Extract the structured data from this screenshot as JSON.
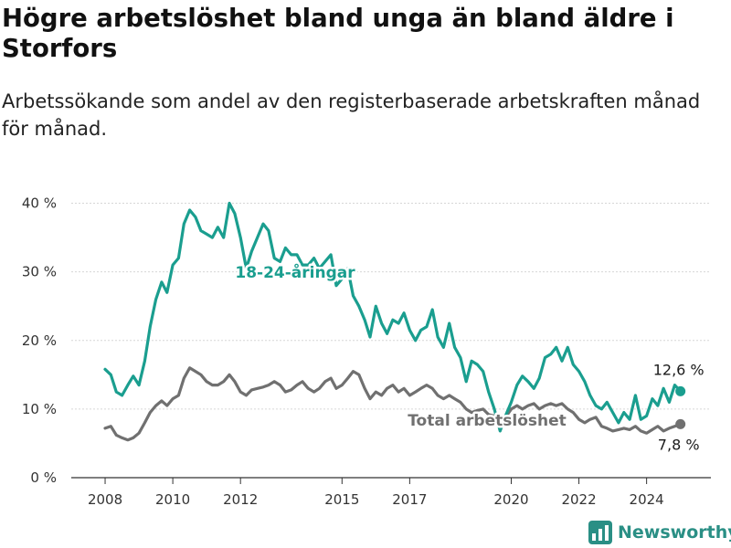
{
  "title": "Högre arbetslöshet bland unga än bland äldre i Storfors",
  "subtitle": "Arbetssökande som andel av den registerbaserade arbetskraften månad för månad.",
  "brand": {
    "name": "Newsworthy"
  },
  "colors": {
    "youth": "#1a9e8f",
    "total": "#707070",
    "grid": "#d6d6d6",
    "axis": "#333333",
    "brand": "#2a8f85"
  },
  "chart_data": {
    "type": "line",
    "title": "Högre arbetslöshet bland unga än bland äldre i Storfors",
    "subtitle": "Arbetssökande som andel av den registerbaserade arbetskraften månad för månad.",
    "x_ticks": [
      2008,
      2010,
      2012,
      2015,
      2017,
      2020,
      2022,
      2024
    ],
    "x_range": [
      2007.0,
      2025.9
    ],
    "y_ticks": [
      0,
      10,
      20,
      30,
      40
    ],
    "y_tick_labels": [
      "0 %",
      "10 %",
      "20 %",
      "30 %",
      "40 %"
    ],
    "y_range": [
      0,
      43
    ],
    "grid": "horizontal",
    "series": [
      {
        "name": "18-24-åringar",
        "color": "#1a9e8f",
        "end_label": "12,6 %",
        "points": [
          [
            2008.0,
            15.8
          ],
          [
            2008.17,
            15.0
          ],
          [
            2008.33,
            12.5
          ],
          [
            2008.5,
            12.0
          ],
          [
            2008.67,
            13.5
          ],
          [
            2008.83,
            14.8
          ],
          [
            2009.0,
            13.5
          ],
          [
            2009.17,
            17.0
          ],
          [
            2009.33,
            22.0
          ],
          [
            2009.5,
            26.0
          ],
          [
            2009.67,
            28.5
          ],
          [
            2009.83,
            27.0
          ],
          [
            2010.0,
            31.0
          ],
          [
            2010.17,
            32.0
          ],
          [
            2010.33,
            37.0
          ],
          [
            2010.5,
            39.0
          ],
          [
            2010.67,
            38.0
          ],
          [
            2010.83,
            36.0
          ],
          [
            2011.0,
            35.5
          ],
          [
            2011.17,
            35.0
          ],
          [
            2011.33,
            36.5
          ],
          [
            2011.5,
            35.0
          ],
          [
            2011.67,
            40.0
          ],
          [
            2011.83,
            38.5
          ],
          [
            2012.0,
            35.0
          ],
          [
            2012.17,
            30.5
          ],
          [
            2012.33,
            33.0
          ],
          [
            2012.5,
            35.0
          ],
          [
            2012.67,
            37.0
          ],
          [
            2012.83,
            36.0
          ],
          [
            2013.0,
            32.0
          ],
          [
            2013.17,
            31.5
          ],
          [
            2013.33,
            33.5
          ],
          [
            2013.5,
            32.5
          ],
          [
            2013.67,
            32.5
          ],
          [
            2013.83,
            31.0
          ],
          [
            2014.0,
            31.0
          ],
          [
            2014.17,
            32.0
          ],
          [
            2014.33,
            30.5
          ],
          [
            2014.5,
            31.5
          ],
          [
            2014.67,
            32.5
          ],
          [
            2014.83,
            28.0
          ],
          [
            2015.0,
            29.0
          ],
          [
            2015.17,
            30.5
          ],
          [
            2015.33,
            26.5
          ],
          [
            2015.5,
            25.0
          ],
          [
            2015.67,
            23.0
          ],
          [
            2015.83,
            20.5
          ],
          [
            2016.0,
            25.0
          ],
          [
            2016.17,
            22.5
          ],
          [
            2016.33,
            21.0
          ],
          [
            2016.5,
            23.0
          ],
          [
            2016.67,
            22.5
          ],
          [
            2016.83,
            24.0
          ],
          [
            2017.0,
            21.5
          ],
          [
            2017.17,
            20.0
          ],
          [
            2017.33,
            21.5
          ],
          [
            2017.5,
            22.0
          ],
          [
            2017.67,
            24.5
          ],
          [
            2017.83,
            20.5
          ],
          [
            2018.0,
            19.0
          ],
          [
            2018.17,
            22.5
          ],
          [
            2018.33,
            19.0
          ],
          [
            2018.5,
            17.5
          ],
          [
            2018.67,
            14.0
          ],
          [
            2018.83,
            17.0
          ],
          [
            2019.0,
            16.5
          ],
          [
            2019.17,
            15.5
          ],
          [
            2019.33,
            12.5
          ],
          [
            2019.5,
            10.0
          ],
          [
            2019.67,
            6.8
          ],
          [
            2019.83,
            9.0
          ],
          [
            2020.0,
            11.0
          ],
          [
            2020.17,
            13.5
          ],
          [
            2020.33,
            14.8
          ],
          [
            2020.5,
            14.0
          ],
          [
            2020.67,
            13.0
          ],
          [
            2020.83,
            14.5
          ],
          [
            2021.0,
            17.5
          ],
          [
            2021.17,
            18.0
          ],
          [
            2021.33,
            19.0
          ],
          [
            2021.5,
            17.0
          ],
          [
            2021.67,
            19.0
          ],
          [
            2021.83,
            16.5
          ],
          [
            2022.0,
            15.5
          ],
          [
            2022.17,
            14.0
          ],
          [
            2022.33,
            12.0
          ],
          [
            2022.5,
            10.5
          ],
          [
            2022.67,
            10.0
          ],
          [
            2022.83,
            11.0
          ],
          [
            2023.0,
            9.5
          ],
          [
            2023.17,
            8.0
          ],
          [
            2023.33,
            9.5
          ],
          [
            2023.5,
            8.5
          ],
          [
            2023.67,
            12.0
          ],
          [
            2023.83,
            8.5
          ],
          [
            2024.0,
            9.0
          ],
          [
            2024.17,
            11.5
          ],
          [
            2024.33,
            10.5
          ],
          [
            2024.5,
            13.0
          ],
          [
            2024.67,
            11.0
          ],
          [
            2024.83,
            13.5
          ],
          [
            2025.0,
            12.6
          ]
        ]
      },
      {
        "name": "Total arbetslöshet",
        "color": "#707070",
        "end_label": "7,8 %",
        "points": [
          [
            2008.0,
            7.2
          ],
          [
            2008.17,
            7.5
          ],
          [
            2008.33,
            6.2
          ],
          [
            2008.5,
            5.8
          ],
          [
            2008.67,
            5.5
          ],
          [
            2008.83,
            5.8
          ],
          [
            2009.0,
            6.5
          ],
          [
            2009.17,
            8.0
          ],
          [
            2009.33,
            9.5
          ],
          [
            2009.5,
            10.5
          ],
          [
            2009.67,
            11.2
          ],
          [
            2009.83,
            10.5
          ],
          [
            2010.0,
            11.5
          ],
          [
            2010.17,
            12.0
          ],
          [
            2010.33,
            14.5
          ],
          [
            2010.5,
            16.0
          ],
          [
            2010.67,
            15.5
          ],
          [
            2010.83,
            15.0
          ],
          [
            2011.0,
            14.0
          ],
          [
            2011.17,
            13.5
          ],
          [
            2011.33,
            13.5
          ],
          [
            2011.5,
            14.0
          ],
          [
            2011.67,
            15.0
          ],
          [
            2011.83,
            14.0
          ],
          [
            2012.0,
            12.5
          ],
          [
            2012.17,
            12.0
          ],
          [
            2012.33,
            12.8
          ],
          [
            2012.5,
            13.0
          ],
          [
            2012.67,
            13.2
          ],
          [
            2012.83,
            13.5
          ],
          [
            2013.0,
            14.0
          ],
          [
            2013.17,
            13.5
          ],
          [
            2013.33,
            12.5
          ],
          [
            2013.5,
            12.8
          ],
          [
            2013.67,
            13.5
          ],
          [
            2013.83,
            14.0
          ],
          [
            2014.0,
            13.0
          ],
          [
            2014.17,
            12.5
          ],
          [
            2014.33,
            13.0
          ],
          [
            2014.5,
            14.0
          ],
          [
            2014.67,
            14.5
          ],
          [
            2014.83,
            13.0
          ],
          [
            2015.0,
            13.5
          ],
          [
            2015.17,
            14.5
          ],
          [
            2015.33,
            15.5
          ],
          [
            2015.5,
            15.0
          ],
          [
            2015.67,
            13.0
          ],
          [
            2015.83,
            11.5
          ],
          [
            2016.0,
            12.5
          ],
          [
            2016.17,
            12.0
          ],
          [
            2016.33,
            13.0
          ],
          [
            2016.5,
            13.5
          ],
          [
            2016.67,
            12.5
          ],
          [
            2016.83,
            13.0
          ],
          [
            2017.0,
            12.0
          ],
          [
            2017.17,
            12.5
          ],
          [
            2017.33,
            13.0
          ],
          [
            2017.5,
            13.5
          ],
          [
            2017.67,
            13.0
          ],
          [
            2017.83,
            12.0
          ],
          [
            2018.0,
            11.5
          ],
          [
            2018.17,
            12.0
          ],
          [
            2018.33,
            11.5
          ],
          [
            2018.5,
            11.0
          ],
          [
            2018.67,
            10.0
          ],
          [
            2018.83,
            9.5
          ],
          [
            2019.0,
            9.8
          ],
          [
            2019.17,
            10.0
          ],
          [
            2019.33,
            9.2
          ],
          [
            2019.5,
            9.0
          ],
          [
            2019.67,
            8.5
          ],
          [
            2019.83,
            8.8
          ],
          [
            2020.0,
            10.0
          ],
          [
            2020.17,
            10.5
          ],
          [
            2020.33,
            10.0
          ],
          [
            2020.5,
            10.5
          ],
          [
            2020.67,
            10.8
          ],
          [
            2020.83,
            10.0
          ],
          [
            2021.0,
            10.5
          ],
          [
            2021.17,
            10.8
          ],
          [
            2021.33,
            10.5
          ],
          [
            2021.5,
            10.8
          ],
          [
            2021.67,
            10.0
          ],
          [
            2021.83,
            9.5
          ],
          [
            2022.0,
            8.5
          ],
          [
            2022.17,
            8.0
          ],
          [
            2022.33,
            8.5
          ],
          [
            2022.5,
            8.8
          ],
          [
            2022.67,
            7.5
          ],
          [
            2022.83,
            7.2
          ],
          [
            2023.0,
            6.8
          ],
          [
            2023.17,
            7.0
          ],
          [
            2023.33,
            7.2
          ],
          [
            2023.5,
            7.0
          ],
          [
            2023.67,
            7.5
          ],
          [
            2023.83,
            6.8
          ],
          [
            2024.0,
            6.5
          ],
          [
            2024.17,
            7.0
          ],
          [
            2024.33,
            7.5
          ],
          [
            2024.5,
            6.8
          ],
          [
            2024.67,
            7.2
          ],
          [
            2024.83,
            7.5
          ],
          [
            2025.0,
            7.8
          ]
        ]
      }
    ]
  }
}
